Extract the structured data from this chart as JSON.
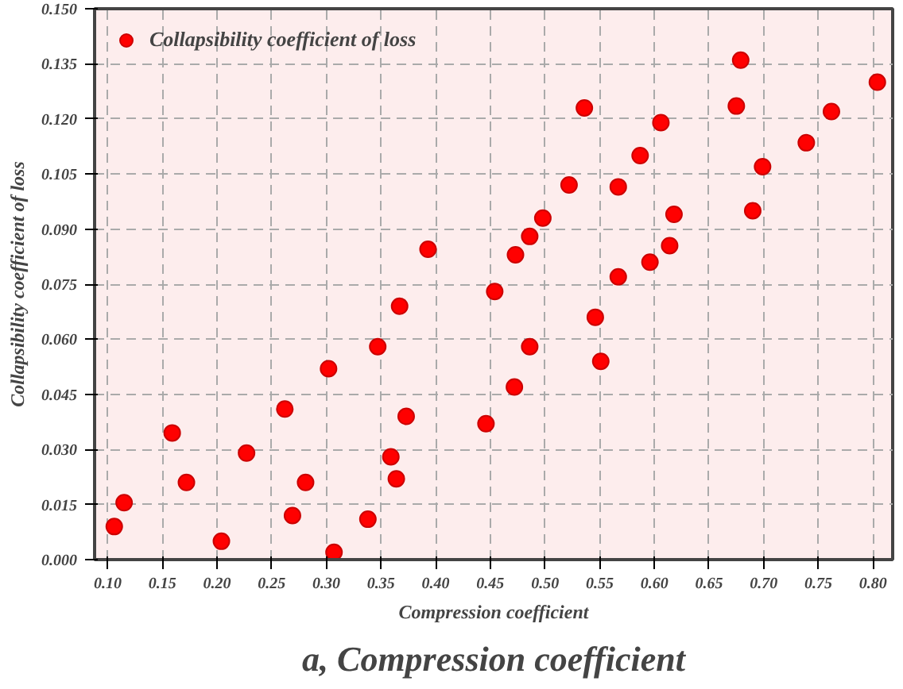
{
  "chart_data": {
    "type": "scatter",
    "title": "a, Compression coefficient",
    "xlabel": "Compression coefficient",
    "ylabel": "Collapsibility coefficient of loss",
    "xlim": [
      0.088,
      0.818
    ],
    "ylim": [
      0,
      0.15
    ],
    "xticks": [
      {
        "value": 0.1,
        "label": "0.10"
      },
      {
        "value": 0.15,
        "label": "0.15"
      },
      {
        "value": 0.2,
        "label": "0.20"
      },
      {
        "value": 0.25,
        "label": "0.25"
      },
      {
        "value": 0.3,
        "label": "0.30"
      },
      {
        "value": 0.35,
        "label": "0.35"
      },
      {
        "value": 0.4,
        "label": "0.40"
      },
      {
        "value": 0.45,
        "label": "0.45"
      },
      {
        "value": 0.5,
        "label": "0.50"
      },
      {
        "value": 0.55,
        "label": "0.55"
      },
      {
        "value": 0.6,
        "label": "0.60"
      },
      {
        "value": 0.65,
        "label": "0.65"
      },
      {
        "value": 0.7,
        "label": "0.70"
      },
      {
        "value": 0.75,
        "label": "0.75"
      },
      {
        "value": 0.8,
        "label": "0.80"
      }
    ],
    "yticks": [
      {
        "value": 0,
        "label": "0.000"
      },
      {
        "value": 0.015,
        "label": "0.015"
      },
      {
        "value": 0.03,
        "label": "0.030"
      },
      {
        "value": 0.045,
        "label": "0.045"
      },
      {
        "value": 0.06,
        "label": "0.060"
      },
      {
        "value": 0.075,
        "label": "0.075"
      },
      {
        "value": 0.09,
        "label": "0.090"
      },
      {
        "value": 0.105,
        "label": "0.105"
      },
      {
        "value": 0.12,
        "label": "0.120"
      },
      {
        "value": 0.135,
        "label": "0.135"
      },
      {
        "value": 0.15,
        "label": "0.150"
      }
    ],
    "grid": true,
    "legend": "top left",
    "marker": "circle",
    "series": [
      {
        "name": "Collapsibility coefficient of loss",
        "color": "#ff0000",
        "x": [
          0.106,
          0.115,
          0.159,
          0.172,
          0.204,
          0.227,
          0.262,
          0.269,
          0.281,
          0.302,
          0.307,
          0.338,
          0.347,
          0.359,
          0.364,
          0.367,
          0.373,
          0.393,
          0.446,
          0.454,
          0.472,
          0.486,
          0.473,
          0.486,
          0.498,
          0.522,
          0.536,
          0.546,
          0.551,
          0.567,
          0.567,
          0.587,
          0.596,
          0.606,
          0.614,
          0.618,
          0.675,
          0.679,
          0.69,
          0.699,
          0.739,
          0.762,
          0.804
        ],
        "values": [
          0.009,
          0.0155,
          0.0345,
          0.021,
          0.005,
          0.029,
          0.041,
          0.012,
          0.021,
          0.052,
          0.002,
          0.011,
          0.058,
          0.028,
          0.022,
          0.069,
          0.039,
          0.0845,
          0.037,
          0.073,
          0.047,
          0.058,
          0.083,
          0.088,
          0.093,
          0.102,
          0.123,
          0.066,
          0.054,
          0.1015,
          0.077,
          0.11,
          0.081,
          0.119,
          0.0855,
          0.094,
          0.1235,
          0.136,
          0.095,
          0.107,
          0.1135,
          0.122,
          0.13
        ]
      }
    ]
  }
}
